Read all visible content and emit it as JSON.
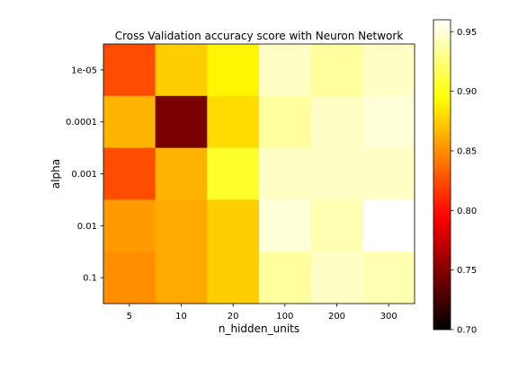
{
  "chart_data": {
    "type": "heatmap",
    "title": "Cross Validation accuracy score with Neuron Network",
    "xlabel": "n_hidden_units",
    "ylabel": "alpha",
    "x_categories": [
      "5",
      "10",
      "20",
      "100",
      "200",
      "300"
    ],
    "y_categories": [
      "1e-05",
      "0.0001",
      "0.001",
      "0.01",
      "0.1"
    ],
    "values": [
      [
        0.825,
        0.875,
        0.89,
        0.945,
        0.935,
        0.945
      ],
      [
        0.865,
        0.745,
        0.88,
        0.935,
        0.945,
        0.95
      ],
      [
        0.825,
        0.865,
        0.905,
        0.945,
        0.945,
        0.945
      ],
      [
        0.855,
        0.86,
        0.875,
        0.95,
        0.94,
        0.96
      ],
      [
        0.85,
        0.86,
        0.875,
        0.935,
        0.945,
        0.94
      ]
    ],
    "colormap": "hot",
    "color_range": [
      0.7,
      0.96
    ],
    "colorbar_ticks": [
      "0.70",
      "0.75",
      "0.80",
      "0.85",
      "0.90",
      "0.95"
    ],
    "grid": false
  }
}
